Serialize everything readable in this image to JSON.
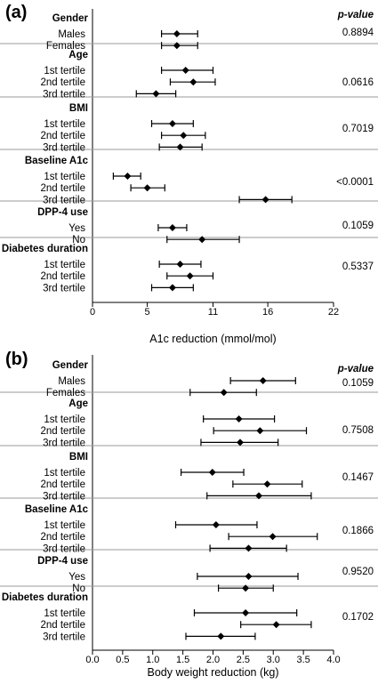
{
  "chart_data": [
    {
      "type": "forest",
      "panel_label": "(a)",
      "xlabel": "A1c reduction (mmol/mol)",
      "xlim": [
        0,
        22
      ],
      "xticks": [
        0,
        5,
        11,
        16,
        22
      ],
      "pvalue_header": "p-value",
      "groups": [
        {
          "name": "Gender",
          "pvalue": "0.8894",
          "rows": [
            {
              "label": "Males",
              "est": 7.7,
              "lo": 6.3,
              "hi": 9.6
            },
            {
              "label": "Females",
              "est": 7.7,
              "lo": 6.3,
              "hi": 9.6
            }
          ]
        },
        {
          "name": "Age",
          "pvalue": "0.0616",
          "rows": [
            {
              "label": "1st tertile",
              "est": 8.5,
              "lo": 6.3,
              "hi": 11.0
            },
            {
              "label": "2nd tertile",
              "est": 9.2,
              "lo": 7.1,
              "hi": 11.2
            },
            {
              "label": "3rd tertile",
              "est": 5.8,
              "lo": 4.0,
              "hi": 7.6
            }
          ]
        },
        {
          "name": "BMI",
          "pvalue": "0.7019",
          "rows": [
            {
              "label": "1st tertile",
              "est": 7.3,
              "lo": 5.4,
              "hi": 9.2
            },
            {
              "label": "2nd tertile",
              "est": 8.3,
              "lo": 6.3,
              "hi": 10.3
            },
            {
              "label": "3rd tertile",
              "est": 8.0,
              "lo": 6.1,
              "hi": 10.0
            }
          ]
        },
        {
          "name": "Baseline A1c",
          "pvalue": "<0.0001",
          "rows": [
            {
              "label": "1st tertile",
              "est": 3.2,
              "lo": 1.9,
              "hi": 4.4
            },
            {
              "label": "2nd tertile",
              "est": 5.0,
              "lo": 3.5,
              "hi": 6.6
            },
            {
              "label": "3rd tertile",
              "est": 15.8,
              "lo": 13.4,
              "hi": 18.2
            }
          ]
        },
        {
          "name": "DPP-4 use",
          "pvalue": "0.1059",
          "rows": [
            {
              "label": "Yes",
              "est": 7.3,
              "lo": 6.0,
              "hi": 8.6
            },
            {
              "label": "No",
              "est": 10.0,
              "lo": 6.8,
              "hi": 13.4
            }
          ]
        },
        {
          "name": "Diabetes duration",
          "pvalue": "0.5337",
          "rows": [
            {
              "label": "1st tertile",
              "est": 8.0,
              "lo": 6.1,
              "hi": 9.9
            },
            {
              "label": "2nd tertile",
              "est": 8.9,
              "lo": 6.8,
              "hi": 11.0
            },
            {
              "label": "3rd tertile",
              "est": 7.3,
              "lo": 5.4,
              "hi": 9.2
            }
          ]
        }
      ]
    },
    {
      "type": "forest",
      "panel_label": "(b)",
      "xlabel": "Body weight reduction (kg)",
      "xlim": [
        0,
        4
      ],
      "xticks": [
        0.0,
        0.5,
        1.0,
        1.5,
        2.0,
        2.5,
        3.0,
        3.5,
        4.0
      ],
      "xtick_labels": [
        "0.0",
        "0.5",
        "1.0",
        "1.5",
        "2.0",
        "2.5",
        "3.0",
        "3.5",
        "4.0"
      ],
      "pvalue_header": "p-value",
      "groups": [
        {
          "name": "Gender",
          "pvalue": "0.1059",
          "rows": [
            {
              "label": "Males",
              "est": 2.83,
              "lo": 2.29,
              "hi": 3.37
            },
            {
              "label": "Females",
              "est": 2.18,
              "lo": 1.62,
              "hi": 2.72
            }
          ]
        },
        {
          "name": "Age",
          "pvalue": "0.7508",
          "rows": [
            {
              "label": "1st tertile",
              "est": 2.43,
              "lo": 1.84,
              "hi": 3.02
            },
            {
              "label": "2nd tertile",
              "est": 2.78,
              "lo": 2.01,
              "hi": 3.55
            },
            {
              "label": "3rd tertile",
              "est": 2.45,
              "lo": 1.8,
              "hi": 3.08
            }
          ]
        },
        {
          "name": "BMI",
          "pvalue": "0.1467",
          "rows": [
            {
              "label": "1st tertile",
              "est": 1.99,
              "lo": 1.47,
              "hi": 2.51
            },
            {
              "label": "2nd tertile",
              "est": 2.9,
              "lo": 2.33,
              "hi": 3.48
            },
            {
              "label": "3rd tertile",
              "est": 2.76,
              "lo": 1.9,
              "hi": 3.63
            }
          ]
        },
        {
          "name": "Baseline A1c",
          "pvalue": "0.1866",
          "rows": [
            {
              "label": "1st tertile",
              "est": 2.05,
              "lo": 1.38,
              "hi": 2.73
            },
            {
              "label": "2nd tertile",
              "est": 2.99,
              "lo": 2.26,
              "hi": 3.73
            },
            {
              "label": "3rd tertile",
              "est": 2.59,
              "lo": 1.95,
              "hi": 3.22
            }
          ]
        },
        {
          "name": "DPP-4 use",
          "pvalue": "0.9520",
          "rows": [
            {
              "label": "Yes",
              "est": 2.59,
              "lo": 1.74,
              "hi": 3.41
            },
            {
              "label": "No",
              "est": 2.54,
              "lo": 2.09,
              "hi": 3.0
            }
          ]
        },
        {
          "name": "Diabetes duration",
          "pvalue": "0.1702",
          "rows": [
            {
              "label": "1st tertile",
              "est": 2.54,
              "lo": 1.69,
              "hi": 3.39
            },
            {
              "label": "2nd tertile",
              "est": 3.05,
              "lo": 2.46,
              "hi": 3.63
            },
            {
              "label": "3rd tertile",
              "est": 2.13,
              "lo": 1.55,
              "hi": 2.7
            }
          ]
        }
      ]
    }
  ]
}
